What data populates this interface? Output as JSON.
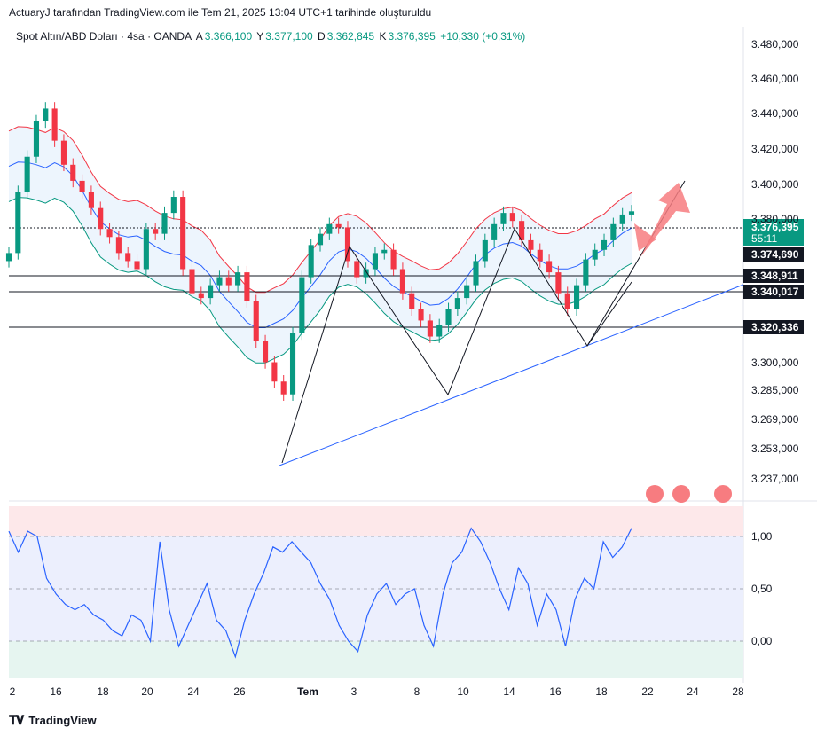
{
  "header": {
    "attribution": "ActuaryJ tarafından TradingView.com ile Tem 21, 2025 13:04 UTC+1 tarihinde oluşturuldu"
  },
  "legend": {
    "symbol": "Spot Altın/ABD Doları · 4sa · OANDA",
    "open_label": "A",
    "open": "3.366,100",
    "high_label": "Y",
    "high": "3.377,100",
    "low_label": "D",
    "low": "3.362,845",
    "close_label": "K",
    "close": "3.376,395",
    "change": "+10,330 (+0,31%)"
  },
  "price_badge": {
    "price": "3.376,395",
    "timer": "55:11"
  },
  "level_labels": [
    "3.374,690",
    "3.348,911",
    "3.340,017",
    "3.320,336"
  ],
  "footer": {
    "brand": "TradingView"
  },
  "colors": {
    "up": "#089981",
    "down": "#f23645",
    "band_upper": "#f23645",
    "band_lower": "#089981",
    "band_mid": "#2962ff",
    "band_fill": "#e9f2fd",
    "rsi_line": "#2962ff",
    "level_line": "#131722",
    "trend_line": "#2962ff",
    "arrow": "#f77c80"
  },
  "chart_data": [
    {
      "type": "line",
      "title": "Spot Altın/ABD Doları · 4sa · OANDA",
      "ylim": [
        3230,
        3490
      ],
      "y_ticks": [
        "3.480,000",
        "3.460,000",
        "3.440,000",
        "3.420,000",
        "3.400,000",
        "3.380,000",
        "3.300,000",
        "3.285,000",
        "3.269,000",
        "3.253,000",
        "3.237,000"
      ],
      "x_ticks": [
        "2",
        "16",
        "18",
        "20",
        "24",
        "26",
        "Tem",
        "3",
        "8",
        "10",
        "14",
        "16",
        "18",
        "22",
        "24",
        "28"
      ],
      "series": [
        {
          "values": [
            3350,
            3388,
            3410,
            3432,
            3440,
            3420,
            3405,
            3395,
            3388,
            3378,
            3365,
            3360,
            3350,
            3345,
            3340,
            3365,
            3362,
            3375,
            3385,
            3340,
            3325,
            3322,
            3330,
            3335,
            3330,
            3338,
            3320,
            3295,
            3282,
            3270,
            3262,
            3300,
            3335,
            3355,
            3362,
            3368,
            3366,
            3345,
            3335,
            3340,
            3350,
            3352,
            3340,
            3325,
            3315,
            3308,
            3298,
            3305,
            3315,
            3322,
            3330,
            3345,
            3358,
            3368,
            3375,
            3370,
            3358,
            3352,
            3345,
            3338,
            3325,
            3315,
            3330,
            3346,
            3352,
            3358,
            3368,
            3374,
            3376
          ]
        }
      ],
      "levels": [
        3374.69,
        3348.911,
        3340.017,
        3320.336
      ],
      "current_price": 3376.395
    },
    {
      "type": "line",
      "ylim": [
        -0.3,
        1.3
      ],
      "y_ticks": [
        "1,00",
        "0,50",
        "0,00"
      ],
      "series": [
        {
          "values": [
            1.05,
            0.85,
            1.05,
            1.0,
            0.6,
            0.45,
            0.35,
            0.3,
            0.35,
            0.25,
            0.2,
            0.1,
            0.05,
            0.25,
            0.2,
            0.0,
            0.95,
            0.3,
            -0.05,
            0.15,
            0.35,
            0.55,
            0.2,
            0.1,
            -0.15,
            0.2,
            0.45,
            0.65,
            0.9,
            0.85,
            0.95,
            0.85,
            0.75,
            0.55,
            0.4,
            0.15,
            0.0,
            -0.1,
            0.25,
            0.45,
            0.55,
            0.35,
            0.45,
            0.5,
            0.15,
            -0.05,
            0.45,
            0.75,
            0.85,
            1.08,
            0.95,
            0.75,
            0.5,
            0.3,
            0.7,
            0.55,
            0.15,
            0.45,
            0.3,
            -0.05,
            0.4,
            0.6,
            0.5,
            0.95,
            0.8,
            0.9,
            1.08
          ]
        }
      ],
      "bands": [
        "1,00",
        "0,50",
        "0,00"
      ]
    }
  ]
}
